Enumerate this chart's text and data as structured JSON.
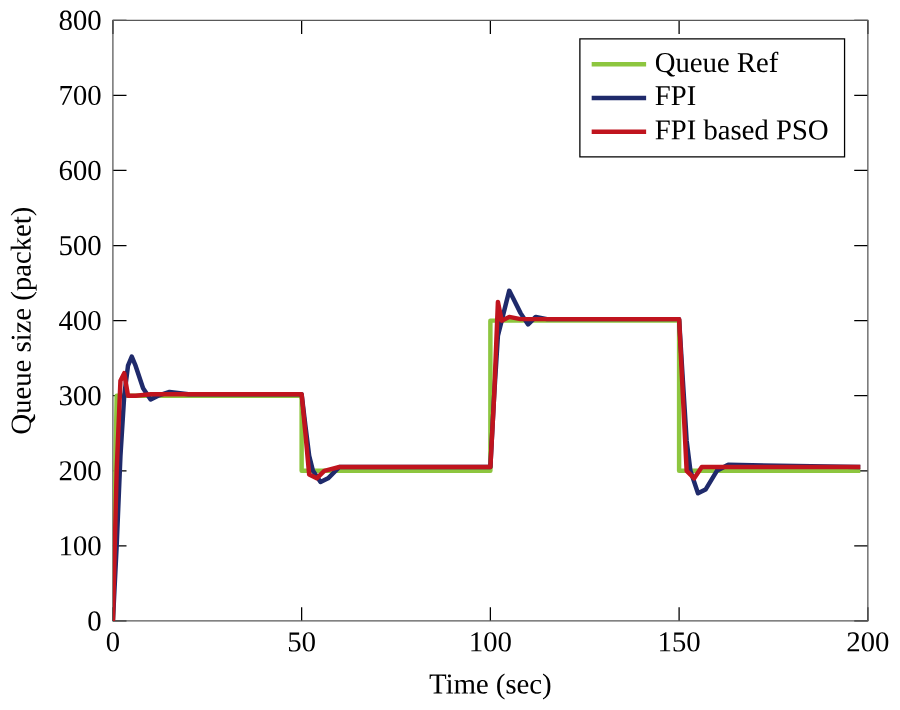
{
  "chart_data": {
    "type": "line",
    "xlabel": "Time (sec)",
    "ylabel": "Queue size (packet)",
    "xlim": [
      0,
      200
    ],
    "ylim": [
      0,
      800
    ],
    "xticks": [
      0,
      50,
      100,
      150,
      200
    ],
    "yticks": [
      0,
      100,
      200,
      300,
      400,
      500,
      600,
      700,
      800
    ],
    "grid": false,
    "legend": "top right",
    "marker": "none",
    "line_style": "solid",
    "series": [
      {
        "name": "Queue Ref",
        "color": "#8dc63f",
        "x": [
          0,
          1,
          50,
          50,
          100,
          100,
          150,
          150,
          198
        ],
        "values": [
          0,
          300,
          300,
          200,
          200,
          400,
          400,
          200,
          200
        ]
      },
      {
        "name": "FPI",
        "color": "#1f2a6b",
        "x": [
          0,
          1,
          2,
          3,
          4,
          5,
          6,
          8,
          10,
          12,
          15,
          20,
          50,
          51,
          52,
          53,
          55,
          57,
          60,
          62,
          100,
          101,
          102,
          104,
          105,
          106,
          108,
          110,
          112,
          115,
          150,
          151,
          152,
          153,
          155,
          157,
          160,
          163,
          198
        ],
        "values": [
          0,
          100,
          220,
          300,
          340,
          352,
          340,
          310,
          295,
          300,
          305,
          302,
          302,
          260,
          220,
          200,
          185,
          190,
          205,
          205,
          205,
          300,
          380,
          420,
          440,
          430,
          410,
          395,
          405,
          402,
          402,
          320,
          240,
          200,
          170,
          175,
          200,
          208,
          205
        ]
      },
      {
        "name": "FPI based PSO",
        "color": "#c0141e",
        "x": [
          0,
          1,
          2,
          3,
          4,
          6,
          10,
          50,
          51,
          52,
          54,
          56,
          60,
          100,
          101,
          102,
          103,
          105,
          108,
          150,
          151,
          152,
          154,
          156,
          160,
          198
        ],
        "values": [
          0,
          200,
          320,
          330,
          300,
          300,
          302,
          302,
          250,
          195,
          190,
          200,
          205,
          205,
          300,
          425,
          400,
          405,
          402,
          402,
          300,
          200,
          190,
          205,
          205,
          205
        ]
      }
    ]
  }
}
